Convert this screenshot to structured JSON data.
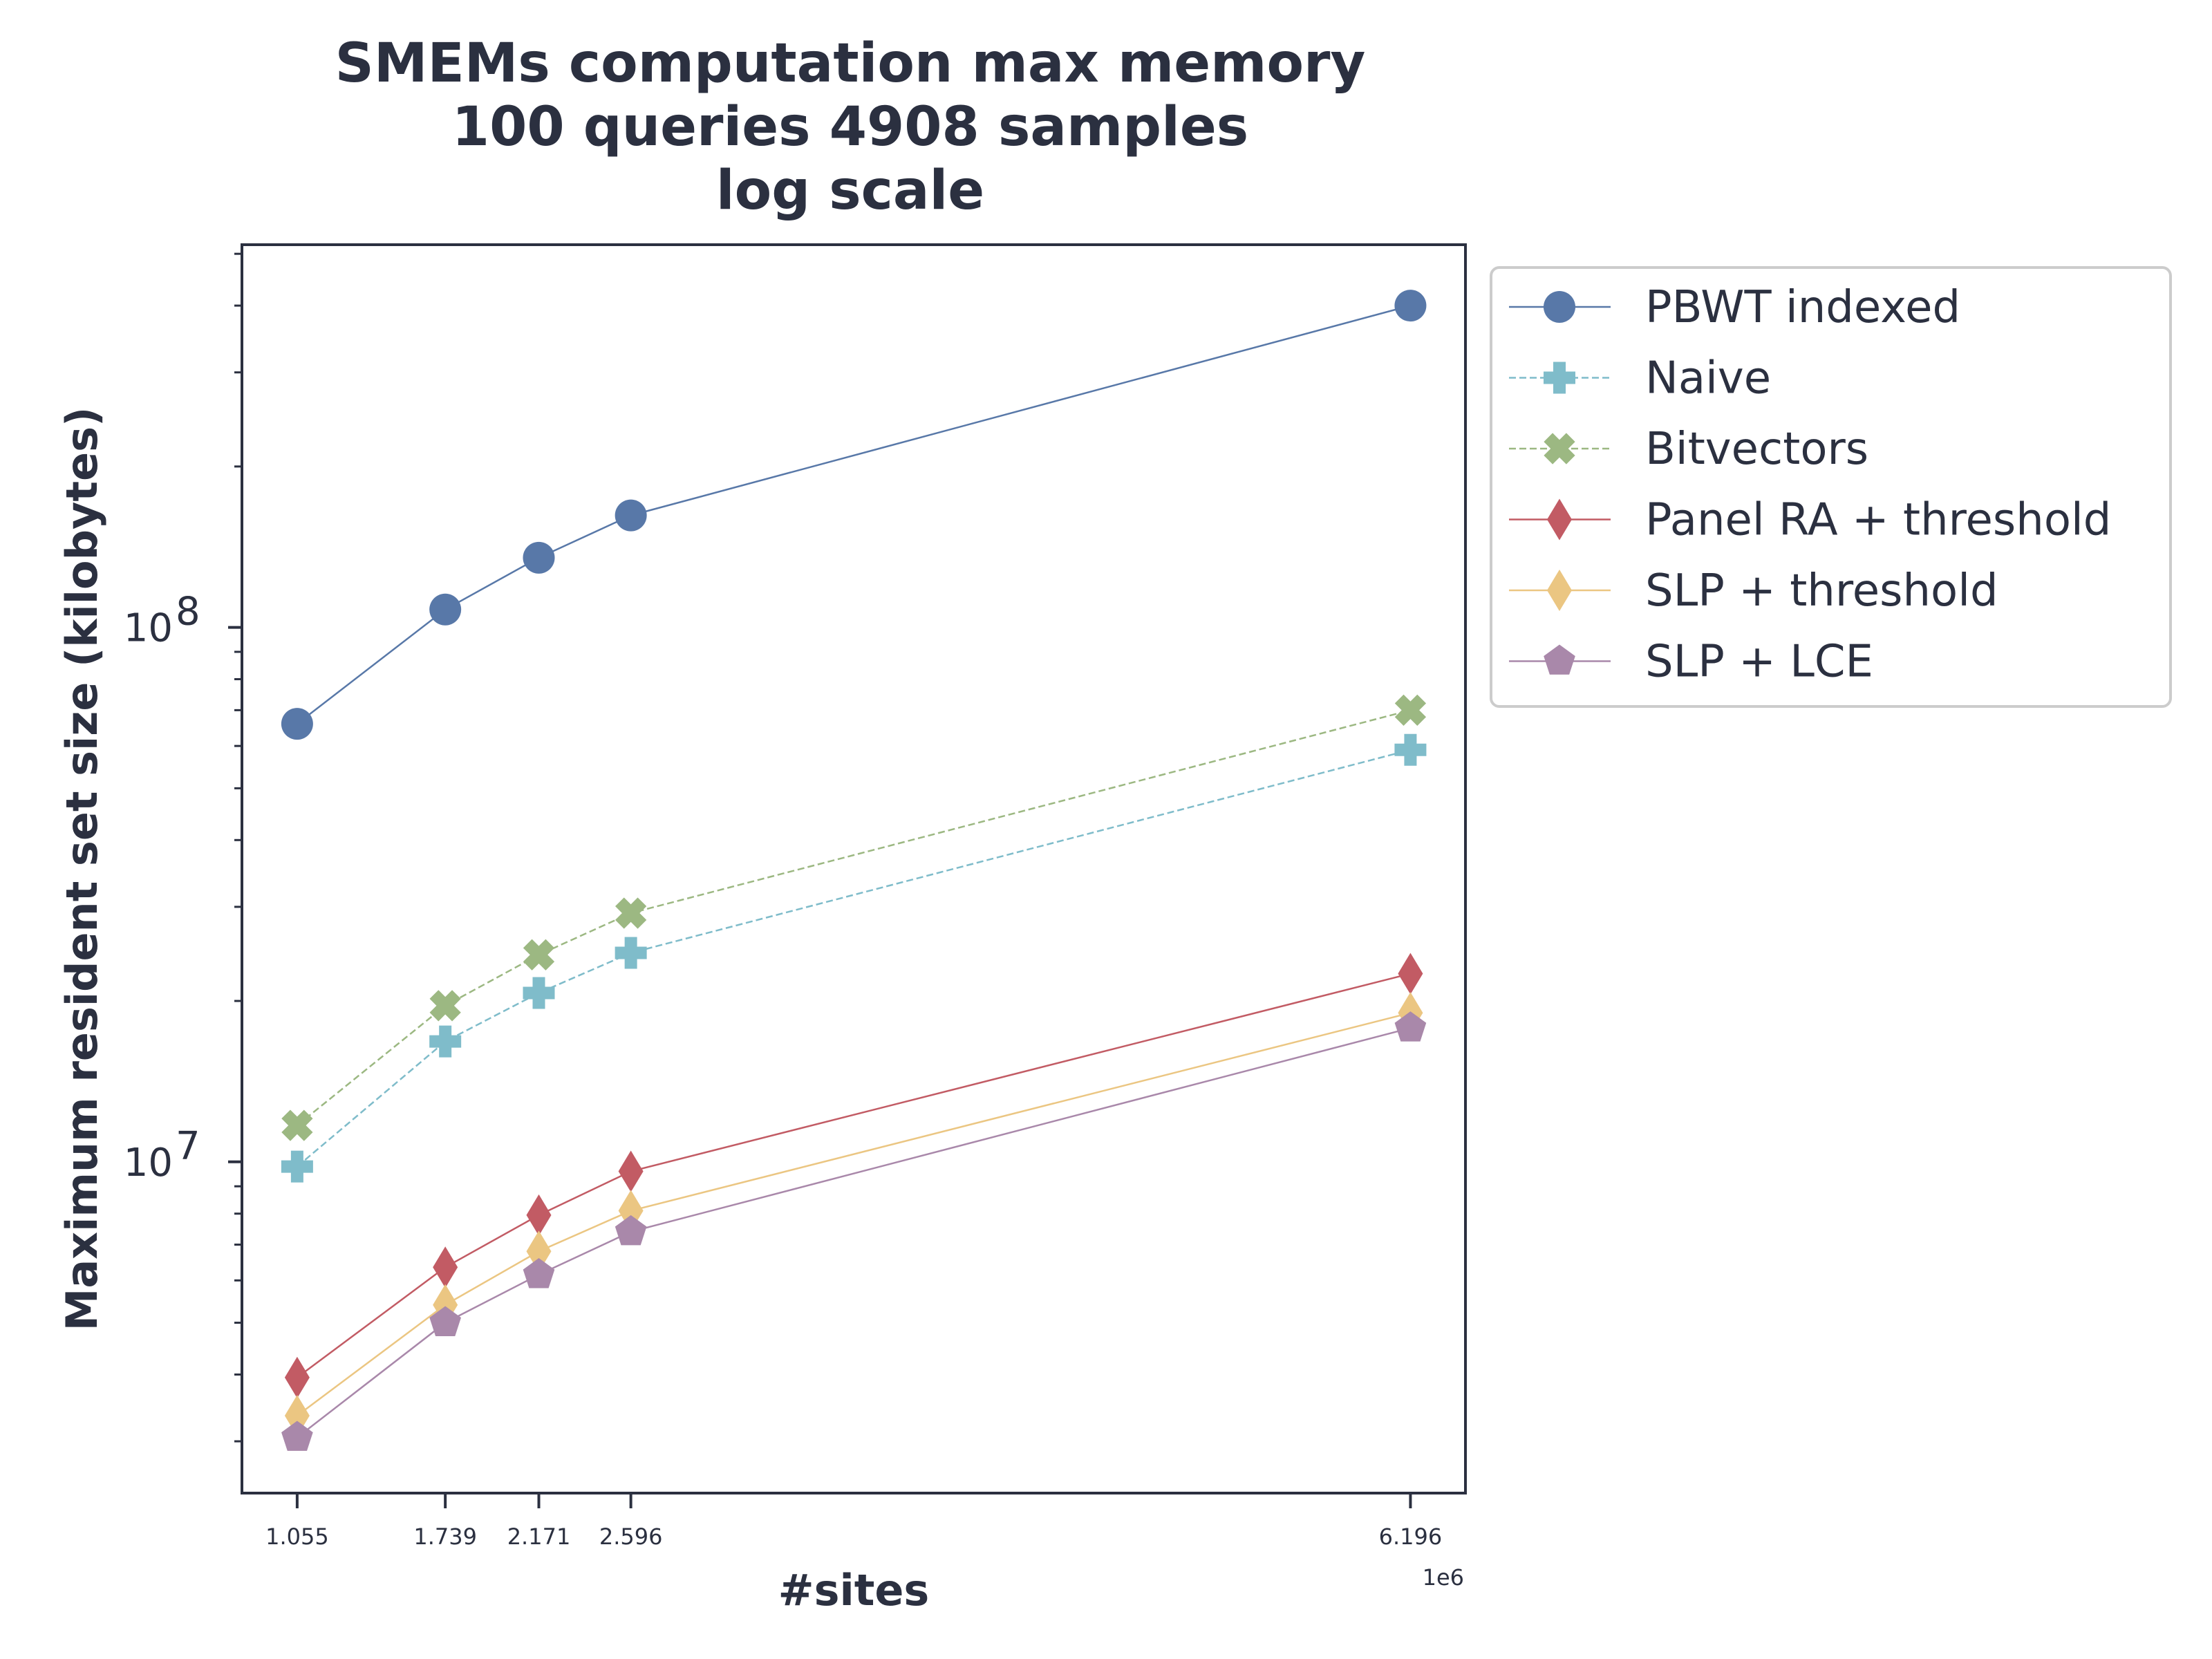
{
  "chart_data": {
    "type": "line",
    "title": [
      "SMEMs computation max memory",
      "100 queries 4908 samples",
      "log scale"
    ],
    "xlabel": "#sites",
    "ylabel": "Maximum resident set size (kilobytes)",
    "x_offset_text": "1e6",
    "x": [
      1.055,
      1.739,
      2.171,
      2.596,
      6.196
    ],
    "x_tick_labels": [
      "1.055",
      "1.739",
      "2.171",
      "2.596",
      "6.196"
    ],
    "xlim": [
      0.8,
      6.45
    ],
    "yscale": "log",
    "ylim": [
      2400000,
      520000000
    ],
    "y_ticks": [
      {
        "value": 10000000,
        "base": "10",
        "exp": "7"
      },
      {
        "value": 100000000,
        "base": "10",
        "exp": "8"
      }
    ],
    "grid": false,
    "legend_position": "outside-right-top",
    "series": [
      {
        "name": "PBWT indexed",
        "values": [
          66000000,
          108000000,
          135000000,
          162000000,
          400000000
        ],
        "color": "#5878a8",
        "marker": "circle",
        "linestyle": "solid"
      },
      {
        "name": "Naive",
        "values": [
          9800000,
          16800000,
          20700000,
          24600000,
          59000000
        ],
        "color": "#7fbcca",
        "marker": "plus",
        "linestyle": "dashed"
      },
      {
        "name": "Bitvectors",
        "values": [
          11700000,
          19600000,
          24400000,
          29200000,
          70000000
        ],
        "color": "#9cb882",
        "marker": "x",
        "linestyle": "dashed"
      },
      {
        "name": "Panel RA + threshold",
        "values": [
          3950000,
          6350000,
          7950000,
          9600000,
          22500000
        ],
        "color": "#c25b64",
        "marker": "diamond",
        "linestyle": "solid"
      },
      {
        "name": "SLP + threshold",
        "values": [
          3350000,
          5400000,
          6800000,
          8100000,
          19000000
        ],
        "color": "#ebc682",
        "marker": "diamond",
        "linestyle": "solid"
      },
      {
        "name": "SLP + LCE",
        "values": [
          3050000,
          5000000,
          6150000,
          7400000,
          17800000
        ],
        "color": "#a988aa",
        "marker": "pentagon",
        "linestyle": "solid"
      }
    ]
  }
}
